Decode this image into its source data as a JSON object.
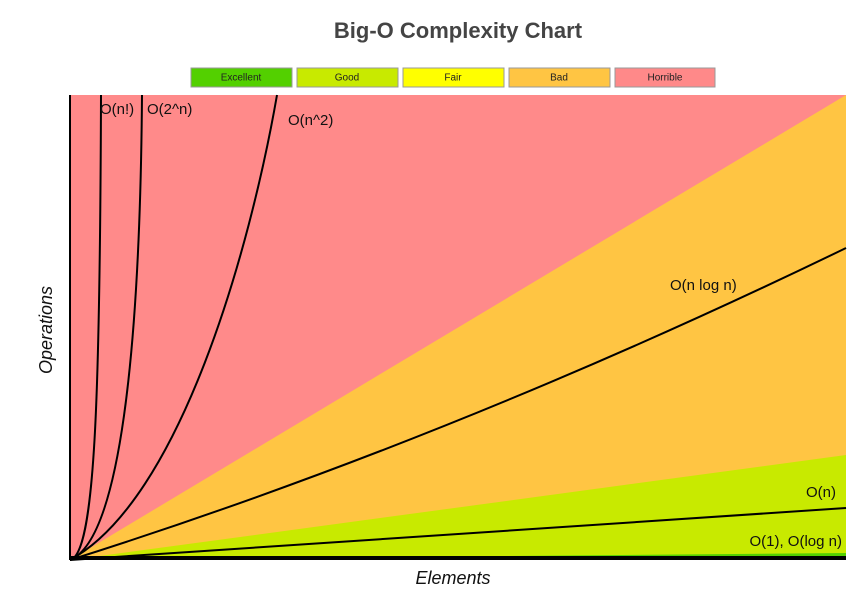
{
  "title": "Big-O Complexity Chart",
  "legend": [
    "Excellent",
    "Good",
    "Fair",
    "Bad",
    "Horrible"
  ],
  "axes": {
    "x_label": "Elements",
    "y_label": "Operations"
  },
  "curves": [
    "O(n!)",
    "O(2^n)",
    "O(n^2)",
    "O(n log n)",
    "O(n)",
    "O(1), O(log n)"
  ]
}
